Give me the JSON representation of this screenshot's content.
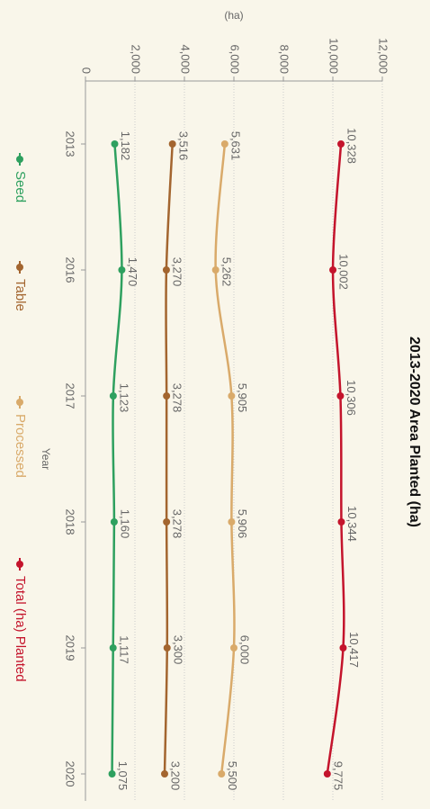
{
  "chart_data": {
    "type": "line",
    "title": "2013-2020 Area Planted (ha)",
    "y_label": "(ha)",
    "x_label": "Year",
    "categories": [
      "2013",
      "2016",
      "2017",
      "2018",
      "2019",
      "2020"
    ],
    "ylim": [
      0,
      12000
    ],
    "yticks": [
      0,
      {
        "value": 2000,
        "label": "2,000"
      },
      {
        "value": 4000,
        "label": "4,000"
      },
      {
        "value": 6000,
        "label": "6,000"
      },
      {
        "value": 8000,
        "label": "8,000"
      },
      {
        "value": 10000,
        "label": "10,000"
      },
      {
        "value": 12000,
        "label": "12,000"
      }
    ],
    "grid": true,
    "legend": "bottom",
    "series": [
      {
        "name": "Seed",
        "color": "#2ea05f",
        "values": [
          1182,
          1470,
          1123,
          1160,
          1117,
          1075
        ],
        "value_labels": [
          "1,182",
          "1,470",
          "1,123",
          "1,160",
          "1,117",
          "1,075"
        ]
      },
      {
        "name": "Table",
        "color": "#a3652f",
        "values": [
          3516,
          3270,
          3278,
          3278,
          3300,
          3200
        ],
        "value_labels": [
          "3,516",
          "3,270",
          "3,278",
          "3,278",
          "3,300",
          "3,200"
        ]
      },
      {
        "name": "Processed",
        "color": "#d9aa6a",
        "values": [
          5631,
          5262,
          5905,
          5906,
          6000,
          5500
        ],
        "value_labels": [
          "5,631",
          "5,262",
          "5,905",
          "5,906",
          "6,000",
          "5,500"
        ]
      },
      {
        "name": "Total (ha) Planted",
        "color": "#c4142c",
        "values": [
          10328,
          10002,
          10306,
          10344,
          10417,
          9775
        ],
        "value_labels": [
          "10,328",
          "10,002",
          "10,306",
          "10,344",
          "10,417",
          "9,775"
        ]
      }
    ]
  }
}
